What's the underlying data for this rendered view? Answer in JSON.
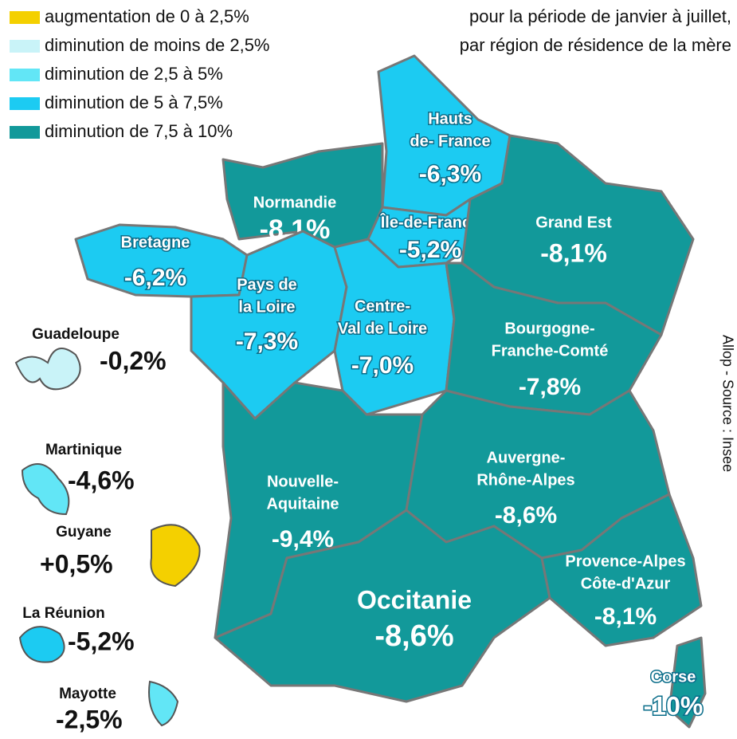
{
  "legend": [
    {
      "label": "augmentation de 0 à 2,5%",
      "color": "#f4d000"
    },
    {
      "label": "diminution de moins de 2,5%",
      "color": "#c9f3f8"
    },
    {
      "label": "diminution de 2,5 à 5%",
      "color": "#62e6f6"
    },
    {
      "label": "diminution de 5 à 7,5%",
      "color": "#1ccbf2"
    },
    {
      "label": "diminution de  7,5 à 10%",
      "color": "#12999a"
    }
  ],
  "subtitle": [
    "pour la période de janvier à juillet,",
    "par région de résidence de la mère"
  ],
  "regions": [
    {
      "name": [
        "Hauts",
        "de- France"
      ],
      "value": "-6,3%",
      "color": "#1ccbf2"
    },
    {
      "name": [
        "Normandie"
      ],
      "value": "-8,1%",
      "color": "#12999a"
    },
    {
      "name": [
        "Île-de-France"
      ],
      "value": "-5,2%",
      "color": "#1ccbf2"
    },
    {
      "name": [
        "Grand Est"
      ],
      "value": "-8,1%",
      "color": "#12999a"
    },
    {
      "name": [
        "Bretagne"
      ],
      "value": "-6,2%",
      "color": "#1ccbf2"
    },
    {
      "name": [
        "Pays de",
        "la Loire"
      ],
      "value": "-7,3%",
      "color": "#1ccbf2"
    },
    {
      "name": [
        "Centre-",
        "Val de Loire"
      ],
      "value": "-7,0%",
      "color": "#1ccbf2"
    },
    {
      "name": [
        "Bourgogne-",
        "Franche-Comté"
      ],
      "value": "-7,8%",
      "color": "#12999a"
    },
    {
      "name": [
        "Nouvelle-",
        "Aquitaine"
      ],
      "value": "-9,4%",
      "color": "#12999a"
    },
    {
      "name": [
        "Auvergne-",
        "Rhône-Alpes"
      ],
      "value": "-8,6%",
      "color": "#12999a"
    },
    {
      "name": [
        "Occitanie"
      ],
      "value": "-8,6%",
      "color": "#12999a"
    },
    {
      "name": [
        "Provence-Alpes",
        "Côte-d'Azur"
      ],
      "value": "-8,1%",
      "color": "#12999a"
    },
    {
      "name": [
        "Corse"
      ],
      "value": "-10%",
      "color": "#12999a"
    }
  ],
  "overseas": [
    {
      "name": "Guadeloupe",
      "value": "-0,2%",
      "color": "#c9f3f8"
    },
    {
      "name": "Martinique",
      "value": "-4,6%",
      "color": "#62e6f6"
    },
    {
      "name": "Guyane",
      "value": "+0,5%",
      "color": "#f4d000"
    },
    {
      "name": "La Réunion",
      "value": "-5,2%",
      "color": "#1ccbf2"
    },
    {
      "name": "Mayotte",
      "value": "-2,5%",
      "color": "#62e6f6"
    }
  ],
  "credit": "Allop - Source : Insee"
}
